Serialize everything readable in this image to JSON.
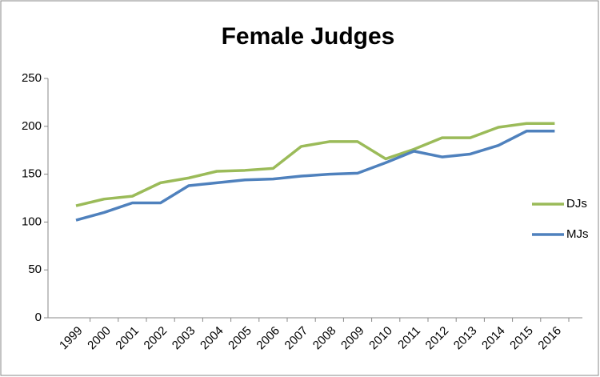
{
  "chart_data": {
    "type": "line",
    "title": "Female Judges",
    "categories": [
      "1999",
      "2000",
      "2001",
      "2002",
      "2003",
      "2004",
      "2005",
      "2006",
      "2007",
      "2008",
      "2009",
      "2010",
      "2011",
      "2012",
      "2013",
      "2014",
      "2015",
      "2016"
    ],
    "series": [
      {
        "name": "DJs",
        "color": "#9bbb59",
        "values": [
          117,
          124,
          127,
          141,
          146,
          153,
          154,
          156,
          179,
          184,
          184,
          166,
          176,
          188,
          188,
          199,
          203,
          203
        ]
      },
      {
        "name": "MJs",
        "color": "#4f81bd",
        "values": [
          102,
          110,
          120,
          120,
          138,
          141,
          144,
          145,
          148,
          150,
          151,
          162,
          174,
          168,
          171,
          180,
          195,
          195
        ]
      }
    ],
    "ylim": [
      0,
      250
    ],
    "yticks": [
      0,
      50,
      100,
      150,
      200,
      250
    ],
    "grid": false,
    "legend": "right"
  }
}
